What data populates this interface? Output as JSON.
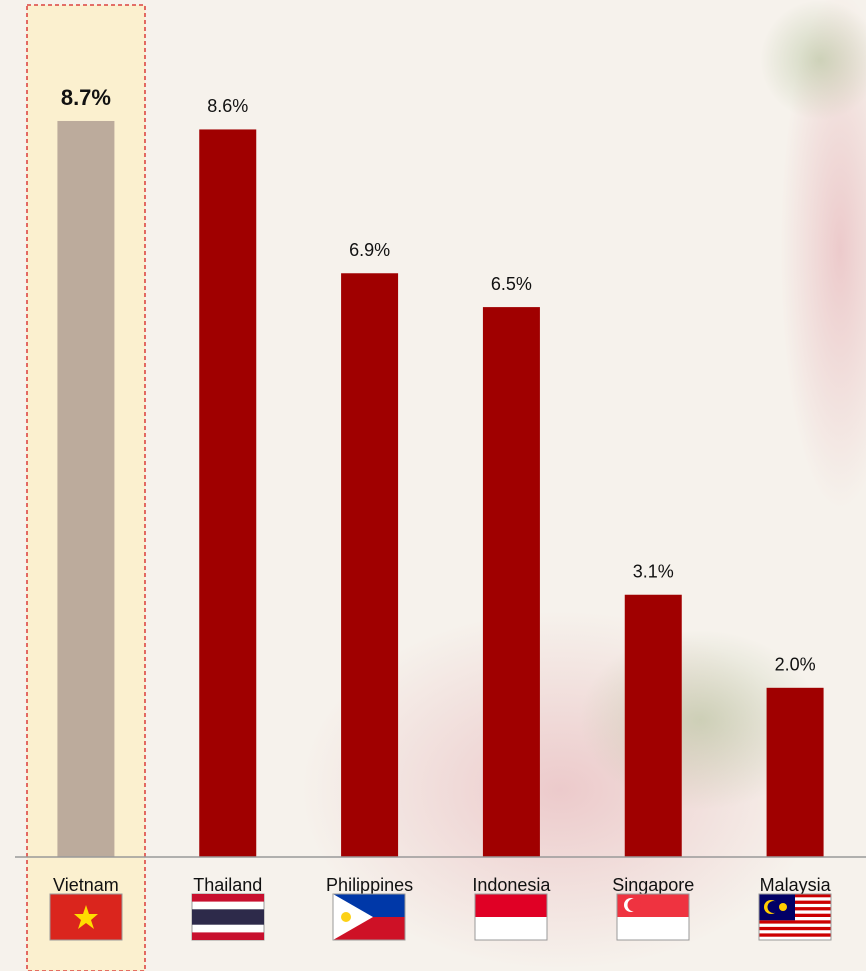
{
  "chart_data": {
    "type": "bar",
    "categories": [
      "Vietnam",
      "Thailand",
      "Philippines",
      "Indonesia",
      "Singapore",
      "Malaysia"
    ],
    "values": [
      8.7,
      8.6,
      6.9,
      6.5,
      3.1,
      2.0
    ],
    "value_labels": [
      "8.7%",
      "8.6%",
      "6.9%",
      "6.5%",
      "3.1%",
      "2.0%"
    ],
    "colors": [
      "#bcab9c",
      "#a00000",
      "#a00000",
      "#a00000",
      "#a00000",
      "#a00000"
    ],
    "ylim": [
      0,
      10
    ]
  }
}
